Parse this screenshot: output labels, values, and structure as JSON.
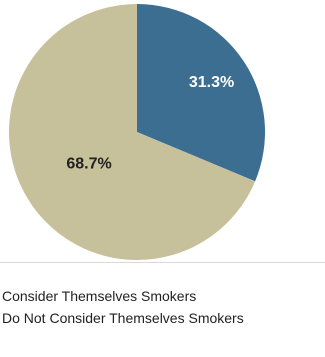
{
  "chart_data": {
    "type": "pie",
    "start_angle_deg": 0,
    "direction": "clockwise",
    "slices": [
      {
        "label": "Consider Themselves Smokers",
        "value": 31.3,
        "display": "31.3%",
        "color": "#3b6e91",
        "label_color": "#ffffff"
      },
      {
        "label": "Do Not Consider Themselves Smokers",
        "value": 68.7,
        "display": "68.7%",
        "color": "#c6c19b",
        "label_color": "#222222"
      }
    ],
    "legend": {
      "placement": "bottom",
      "items": [
        "Consider Themselves Smokers",
        "Do Not Consider Themselves Smokers"
      ]
    }
  }
}
